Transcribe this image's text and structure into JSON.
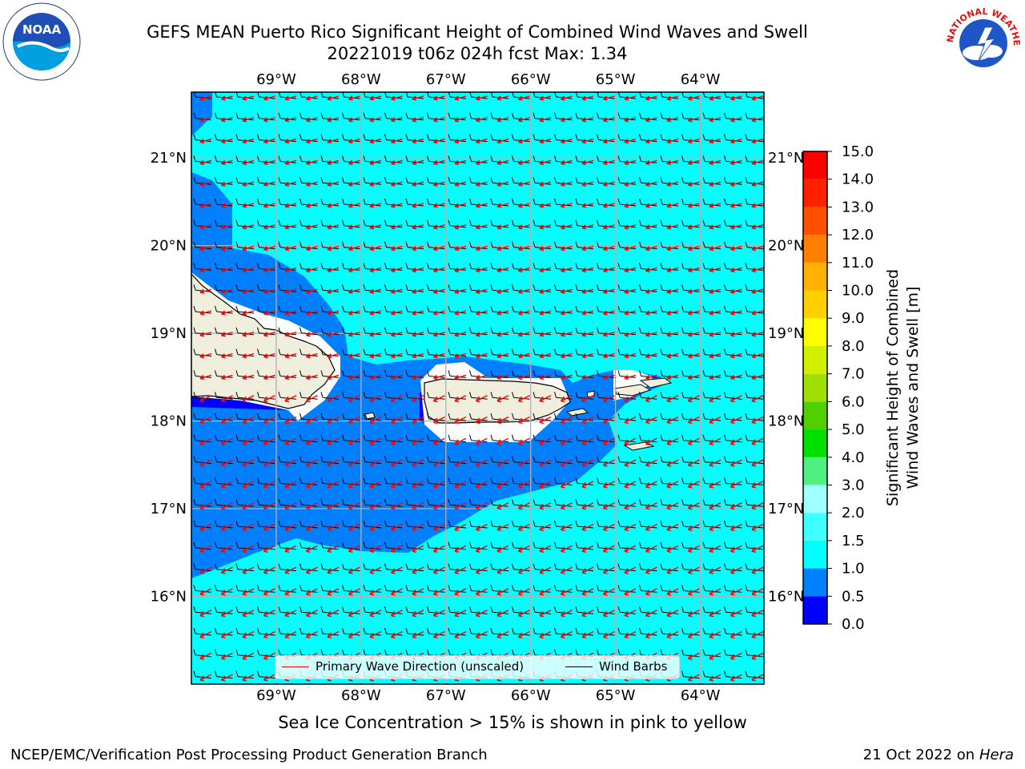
{
  "title": {
    "line1": "GEFS MEAN Puerto Rico Significant Height of Combined Wind Waves and Swell",
    "line2": "20221019 t06z 024h fcst   Max: 1.34"
  },
  "map": {
    "lon_ticks": [
      "69°W",
      "68°W",
      "67°W",
      "66°W",
      "65°W",
      "64°W"
    ],
    "lat_ticks": [
      "21°N",
      "20°N",
      "19°N",
      "18°N",
      "17°N",
      "16°N"
    ],
    "extent": {
      "lon_min": -70.0,
      "lon_max": -63.25,
      "lat_min": 15.0,
      "lat_max": 21.75
    },
    "legend": {
      "wave_label": "Primary Wave Direction (unscaled)",
      "wave_color": "#ff0000",
      "barb_label": "Wind Barbs",
      "barb_color": "#000000"
    }
  },
  "colorbar": {
    "label_line1": "Significant Height of Combined",
    "label_line2": "Wind Waves and Swell [m]",
    "ticks": [
      "0.0",
      "0.5",
      "1.0",
      "1.5",
      "2.0",
      "3.0",
      "4.0",
      "5.0",
      "6.0",
      "7.0",
      "8.0",
      "9.0",
      "10.0",
      "11.0",
      "12.0",
      "13.0",
      "14.0",
      "15.0"
    ],
    "colors": [
      "#0000ff",
      "#0080ff",
      "#00ffff",
      "#40ffff",
      "#a0ffff",
      "#50f080",
      "#00e000",
      "#50d000",
      "#a0e000",
      "#d0f000",
      "#ffff00",
      "#ffd000",
      "#ffb000",
      "#ff8000",
      "#ff5000",
      "#ff2000",
      "#ff0000"
    ]
  },
  "colors": {
    "sea_main": "#00ffff",
    "sea_near_coast": "#0080ff",
    "land": "#f0eedc",
    "grid": "#b0b0b0",
    "deep_blue": "#0000ff"
  },
  "logos": {
    "noaa_text": "NOAA",
    "nws_text": "NATIONAL WEATHER SERVICE"
  },
  "footer": {
    "seaice": "Sea Ice Concentration > 15% is shown in pink to yellow",
    "credit_left": "NCEP/EMC/Verification Post Processing Product Generation Branch",
    "credit_date": "21 Oct 2022 on ",
    "credit_host": "Hera"
  }
}
